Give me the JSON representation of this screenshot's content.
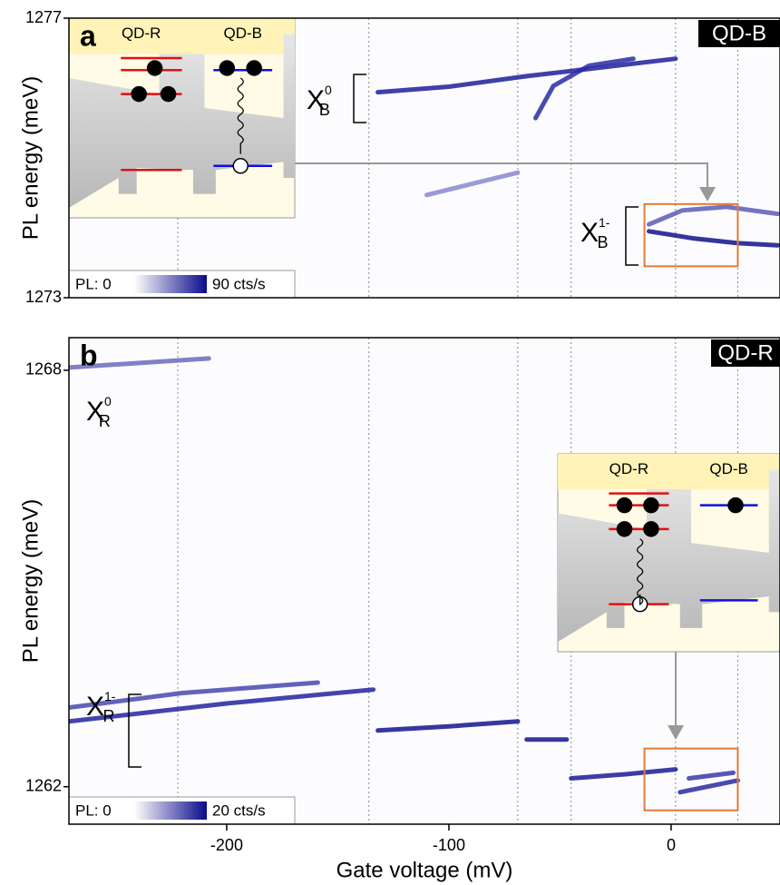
{
  "chart_data": [
    {
      "type": "heatmap",
      "panel_label": "a",
      "title": "QD-B",
      "ylabel": "PL energy (meV)",
      "xlim": [
        -271,
        49
      ],
      "ylim": [
        1273,
        1277
      ],
      "yticks": [
        1277,
        1273
      ],
      "colorbar": {
        "min_label": "PL: 0",
        "max_label": "90 cts/s",
        "colors": [
          "#ffffff",
          "#0a0a8a"
        ]
      },
      "vlines": [
        -222,
        -136,
        -69,
        -45,
        2,
        30
      ],
      "series": [
        {
          "color": "#1e1e9a",
          "x": [
            -132,
            -100,
            -65,
            -30,
            2
          ],
          "y": [
            1275.94,
            1276.02,
            1276.17,
            1276.3,
            1276.42
          ]
        },
        {
          "color": "#2a2aa6",
          "x": [
            -61,
            -53,
            -37,
            -17
          ],
          "y": [
            1275.57,
            1276.03,
            1276.32,
            1276.42
          ]
        },
        {
          "color": "#8888cc",
          "x": [
            -110,
            -69
          ],
          "y": [
            1274.47,
            1274.79
          ]
        },
        {
          "color": "#12128e",
          "x": [
            -10,
            10,
            30,
            48
          ],
          "y": [
            1273.95,
            1273.85,
            1273.78,
            1273.75
          ]
        },
        {
          "color": "#5c5cb8",
          "x": [
            -10,
            5,
            25,
            48
          ],
          "y": [
            1274.05,
            1274.25,
            1274.3,
            1274.2
          ]
        }
      ],
      "annotations": [
        {
          "text": "X",
          "sub": "B",
          "sup": "0"
        },
        {
          "text": "X",
          "sub": "B",
          "sup": "1-"
        }
      ],
      "highlight": {
        "xlim": [
          -12,
          30
        ],
        "ylim": [
          1273.45,
          1274.34
        ],
        "color": "#e07b39"
      },
      "inset": {
        "labels": [
          "QD-R",
          "QD-B"
        ]
      }
    },
    {
      "type": "heatmap",
      "panel_label": "b",
      "title": "QD-R",
      "ylabel": "PL energy (meV)",
      "xlabel": "Gate voltage (mV)",
      "xlim": [
        -271,
        49
      ],
      "ylim": [
        1261.46,
        1268.47
      ],
      "xticks": [
        -200,
        -100,
        0
      ],
      "yticks": [
        1268,
        1262
      ],
      "colorbar": {
        "min_label": "PL: 0",
        "max_label": "20 cts/s",
        "colors": [
          "#ffffff",
          "#0a0a8a"
        ]
      },
      "vlines": [
        -222,
        -136,
        -69,
        -45,
        2,
        30
      ],
      "series": [
        {
          "color": "#6a6ac0",
          "x": [
            -271,
            -208
          ],
          "y": [
            1268.04,
            1268.17
          ]
        },
        {
          "color": "#2323a0",
          "x": [
            -271,
            -200,
            -134
          ],
          "y": [
            1262.94,
            1263.2,
            1263.4
          ]
        },
        {
          "color": "#4848b0",
          "x": [
            -271,
            -220,
            -159
          ],
          "y": [
            1263.14,
            1263.35,
            1263.5
          ]
        },
        {
          "color": "#14148f",
          "x": [
            -132,
            -100,
            -69
          ],
          "y": [
            1262.81,
            1262.87,
            1262.94
          ]
        },
        {
          "color": "#14148f",
          "x": [
            -65,
            -47
          ],
          "y": [
            1262.68,
            1262.68
          ]
        },
        {
          "color": "#1a1a95",
          "x": [
            -45,
            -20,
            2
          ],
          "y": [
            1262.12,
            1262.18,
            1262.25
          ]
        },
        {
          "color": "#2a2aa0",
          "x": [
            4,
            30
          ],
          "y": [
            1261.92,
            1262.09
          ]
        },
        {
          "color": "#3a3aa8",
          "x": [
            8,
            28
          ],
          "y": [
            1262.12,
            1262.2
          ]
        }
      ],
      "annotations": [
        {
          "text": "X",
          "sub": "R",
          "sup": "0"
        },
        {
          "text": "X",
          "sub": "R",
          "sup": "1-"
        }
      ],
      "highlight": {
        "xlim": [
          -12,
          30
        ],
        "ylim": [
          1261.66,
          1262.55
        ],
        "color": "#e07b39"
      },
      "inset": {
        "labels": [
          "QD-R",
          "QD-B"
        ]
      }
    }
  ]
}
